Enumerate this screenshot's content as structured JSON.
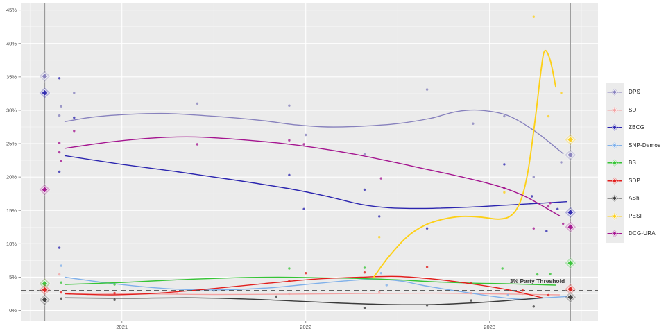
{
  "chart_data": {
    "type": "line",
    "subtype": "poll-aggregation-scatter-with-trend",
    "title": "",
    "x_axis": {
      "tick_labels": [
        "2021",
        "2022",
        "2023"
      ],
      "tick_years": [
        2021,
        2022,
        2023
      ],
      "minor_years": [
        2020.5,
        2021.5,
        2022.5,
        2023.5
      ],
      "range": [
        2020.45,
        2023.59
      ],
      "grid": true
    },
    "y_axis": {
      "tick_labels": [
        "0%",
        "5%",
        "10%",
        "15%",
        "20%",
        "25%",
        "30%",
        "35%",
        "40%",
        "45%"
      ],
      "tick_values": [
        0,
        5,
        10,
        15,
        20,
        25,
        30,
        35,
        40,
        45
      ],
      "minor_values": [
        2.5,
        7.5,
        12.5,
        17.5,
        22.5,
        27.5,
        32.5,
        37.5,
        42.5
      ],
      "range": [
        -1.5,
        46.0
      ],
      "grid": true
    },
    "threshold": {
      "value": 3,
      "label": "3% Party Threshold",
      "label_year": 2023.11,
      "color": "#4d4d4d"
    },
    "elections": [
      {
        "id": "2020",
        "year": 2020.58
      },
      {
        "id": "2023",
        "year": 2023.44
      }
    ],
    "election_line_color": "#9a9a9a",
    "panel_background": "#ebebeb",
    "legend_position": "right",
    "series": [
      {
        "name": "DPS",
        "color": "#8781bd",
        "trend": [
          [
            2020.69,
            28.3
          ],
          [
            2020.85,
            29.0
          ],
          [
            2021.05,
            29.4
          ],
          [
            2021.25,
            29.5
          ],
          [
            2021.5,
            29.1
          ],
          [
            2021.75,
            28.5
          ],
          [
            2021.95,
            27.8
          ],
          [
            2022.12,
            27.5
          ],
          [
            2022.3,
            27.6
          ],
          [
            2022.5,
            28.0
          ],
          [
            2022.68,
            28.8
          ],
          [
            2022.82,
            29.8
          ],
          [
            2022.95,
            30.0
          ],
          [
            2023.1,
            29.2
          ],
          [
            2023.25,
            26.8
          ],
          [
            2023.4,
            23.5
          ]
        ],
        "polls": [
          [
            2020.74,
            32.6
          ],
          [
            2020.67,
            30.6
          ],
          [
            2020.66,
            29.2
          ],
          [
            2021.41,
            31.0
          ],
          [
            2021.91,
            30.7
          ],
          [
            2022.0,
            26.3
          ],
          [
            2022.32,
            23.4
          ],
          [
            2022.66,
            33.1
          ],
          [
            2022.91,
            28.0
          ],
          [
            2023.08,
            29.1
          ],
          [
            2023.24,
            20.0
          ],
          [
            2023.39,
            22.2
          ]
        ],
        "results": {
          "2020": 35.1,
          "2023": 23.3
        }
      },
      {
        "name": "SD",
        "color": "#f2a2a2",
        "trend": [
          [
            2020.69,
            2.6
          ],
          [
            2021.1,
            2.5
          ],
          [
            2021.5,
            2.4
          ],
          [
            2021.9,
            2.45
          ],
          [
            2022.3,
            2.55
          ],
          [
            2022.7,
            2.6
          ],
          [
            2023.0,
            2.5
          ],
          [
            2023.38,
            2.35
          ]
        ],
        "polls": [
          [
            2020.66,
            5.4
          ],
          [
            2021.3,
            2.6
          ],
          [
            2021.91,
            2.5
          ],
          [
            2022.4,
            2.8
          ],
          [
            2022.9,
            2.6
          ],
          [
            2023.18,
            2.5
          ]
        ],
        "results": {
          "2020": 4.1
        }
      },
      {
        "name": "ZBCG",
        "color": "#2b25af",
        "trend": [
          [
            2020.69,
            23.2
          ],
          [
            2021.0,
            21.9
          ],
          [
            2021.3,
            20.8
          ],
          [
            2021.6,
            19.6
          ],
          [
            2021.9,
            18.3
          ],
          [
            2022.1,
            17.2
          ],
          [
            2022.3,
            15.9
          ],
          [
            2022.45,
            15.4
          ],
          [
            2022.65,
            15.3
          ],
          [
            2022.9,
            15.5
          ],
          [
            2023.1,
            15.8
          ],
          [
            2023.42,
            16.3
          ]
        ],
        "polls": [
          [
            2020.66,
            34.8
          ],
          [
            2020.74,
            28.9
          ],
          [
            2020.66,
            20.8
          ],
          [
            2020.66,
            9.4
          ],
          [
            2021.91,
            20.3
          ],
          [
            2021.99,
            15.2
          ],
          [
            2022.32,
            18.1
          ],
          [
            2022.4,
            14.1
          ],
          [
            2022.66,
            12.3
          ],
          [
            2023.08,
            21.9
          ],
          [
            2023.23,
            17.1
          ],
          [
            2023.31,
            11.9
          ],
          [
            2023.37,
            15.2
          ]
        ],
        "results": {
          "2020": 32.6,
          "2023": 14.7
        }
      },
      {
        "name": "SNP-Demos",
        "color": "#7fb0ea",
        "trend": [
          [
            2020.69,
            5.0
          ],
          [
            2020.9,
            4.2
          ],
          [
            2021.1,
            3.6
          ],
          [
            2021.3,
            3.2
          ],
          [
            2021.55,
            3.1
          ],
          [
            2021.8,
            3.4
          ],
          [
            2022.0,
            3.9
          ],
          [
            2022.2,
            4.4
          ],
          [
            2022.38,
            4.7
          ],
          [
            2022.52,
            4.4
          ],
          [
            2022.65,
            3.7
          ],
          [
            2022.85,
            2.8
          ],
          [
            2023.05,
            2.0
          ],
          [
            2023.18,
            1.7
          ],
          [
            2023.3,
            1.9
          ],
          [
            2023.42,
            2.1
          ]
        ],
        "polls": [
          [
            2020.67,
            6.7
          ],
          [
            2021.5,
            3.0
          ],
          [
            2022.41,
            5.6
          ],
          [
            2022.44,
            3.8
          ],
          [
            2023.1,
            2.3
          ]
        ],
        "results": {}
      },
      {
        "name": "BS",
        "color": "#35c435",
        "trend": [
          [
            2020.69,
            3.9
          ],
          [
            2021.0,
            4.2
          ],
          [
            2021.3,
            4.6
          ],
          [
            2021.6,
            4.9
          ],
          [
            2021.85,
            5.0
          ],
          [
            2022.1,
            4.9
          ],
          [
            2022.3,
            4.8
          ],
          [
            2022.5,
            4.6
          ],
          [
            2022.7,
            4.3
          ],
          [
            2022.9,
            4.1
          ],
          [
            2023.1,
            4.0
          ],
          [
            2023.36,
            3.8
          ]
        ],
        "polls": [
          [
            2020.67,
            4.2
          ],
          [
            2020.96,
            3.9
          ],
          [
            2021.91,
            6.3
          ],
          [
            2022.32,
            6.4
          ],
          [
            2023.07,
            6.3
          ],
          [
            2023.26,
            5.4
          ],
          [
            2023.33,
            5.5
          ]
        ],
        "results": {
          "2020": 4.0,
          "2023": 7.1
        }
      },
      {
        "name": "SDP",
        "color": "#e11e1c",
        "trend": [
          [
            2020.69,
            2.5
          ],
          [
            2020.95,
            2.35
          ],
          [
            2021.2,
            2.6
          ],
          [
            2021.5,
            3.3
          ],
          [
            2021.8,
            4.1
          ],
          [
            2022.05,
            4.7
          ],
          [
            2022.3,
            5.0
          ],
          [
            2022.5,
            5.1
          ],
          [
            2022.7,
            4.7
          ],
          [
            2022.9,
            4.0
          ],
          [
            2023.1,
            3.1
          ],
          [
            2023.29,
            1.9
          ]
        ],
        "polls": [
          [
            2020.67,
            2.7
          ],
          [
            2020.96,
            2.6
          ],
          [
            2021.91,
            4.4
          ],
          [
            2022.0,
            5.6
          ],
          [
            2022.32,
            5.7
          ],
          [
            2022.66,
            6.5
          ],
          [
            2022.9,
            4.1
          ],
          [
            2023.18,
            3.0
          ],
          [
            2023.32,
            2.3
          ]
        ],
        "results": {
          "2020": 3.1,
          "2023": 3.2
        }
      },
      {
        "name": "ASh",
        "color": "#3a3a3a",
        "trend": [
          [
            2020.69,
            1.9
          ],
          [
            2021.0,
            1.85
          ],
          [
            2021.4,
            1.9
          ],
          [
            2021.7,
            1.7
          ],
          [
            2021.95,
            1.4
          ],
          [
            2022.2,
            1.1
          ],
          [
            2022.45,
            0.9
          ],
          [
            2022.7,
            0.9
          ],
          [
            2022.95,
            1.2
          ],
          [
            2023.15,
            1.6
          ],
          [
            2023.29,
            1.9
          ]
        ],
        "polls": [
          [
            2020.67,
            1.8
          ],
          [
            2020.96,
            1.6
          ],
          [
            2021.84,
            2.1
          ],
          [
            2022.32,
            0.4
          ],
          [
            2022.66,
            0.8
          ],
          [
            2022.9,
            1.5
          ],
          [
            2023.24,
            0.6
          ]
        ],
        "results": {
          "2020": 1.6,
          "2023": 2.0
        }
      },
      {
        "name": "PESI",
        "color": "#fdd017",
        "trend": [
          [
            2022.37,
            5.0
          ],
          [
            2022.45,
            8.0
          ],
          [
            2022.55,
            11.0
          ],
          [
            2022.65,
            12.8
          ],
          [
            2022.75,
            13.7
          ],
          [
            2022.85,
            14.1
          ],
          [
            2022.95,
            14.0
          ],
          [
            2023.05,
            13.7
          ],
          [
            2023.12,
            14.3
          ],
          [
            2023.17,
            16.5
          ],
          [
            2023.21,
            21.0
          ],
          [
            2023.25,
            29.0
          ],
          [
            2023.28,
            36.0
          ],
          [
            2023.3,
            38.9
          ],
          [
            2023.33,
            37.5
          ],
          [
            2023.36,
            33.5
          ]
        ],
        "polls": [
          [
            2022.4,
            11.0
          ],
          [
            2023.08,
            17.7
          ],
          [
            2023.24,
            44.0
          ],
          [
            2023.32,
            29.1
          ],
          [
            2023.39,
            32.6
          ]
        ],
        "results": {
          "2023": 25.6
        }
      },
      {
        "name": "DCG-URA",
        "color": "#a4148f",
        "trend": [
          [
            2020.69,
            24.3
          ],
          [
            2020.95,
            25.3
          ],
          [
            2021.2,
            25.9
          ],
          [
            2021.4,
            26.0
          ],
          [
            2021.6,
            25.7
          ],
          [
            2021.85,
            25.1
          ],
          [
            2022.05,
            24.4
          ],
          [
            2022.25,
            23.5
          ],
          [
            2022.45,
            22.4
          ],
          [
            2022.65,
            21.2
          ],
          [
            2022.85,
            20.0
          ],
          [
            2023.05,
            18.6
          ],
          [
            2023.2,
            17.0
          ],
          [
            2023.38,
            14.2
          ]
        ],
        "polls": [
          [
            2020.74,
            26.9
          ],
          [
            2020.66,
            25.1
          ],
          [
            2020.66,
            23.7
          ],
          [
            2020.67,
            22.4
          ],
          [
            2021.41,
            24.9
          ],
          [
            2021.91,
            25.5
          ],
          [
            2021.99,
            24.9
          ],
          [
            2022.41,
            19.8
          ],
          [
            2023.08,
            18.3
          ],
          [
            2023.24,
            12.3
          ],
          [
            2023.32,
            15.6
          ],
          [
            2023.33,
            16.1
          ],
          [
            2023.4,
            13.0
          ]
        ],
        "results": {
          "2020": 18.1,
          "2023": 12.5
        }
      }
    ]
  }
}
